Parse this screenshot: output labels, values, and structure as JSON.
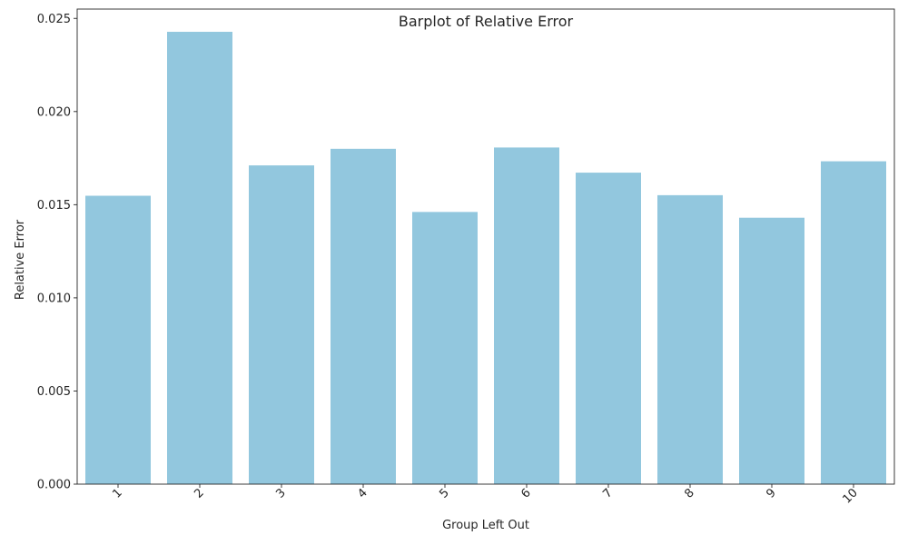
{
  "chart_data": {
    "type": "bar",
    "title": "Barplot of Relative Error",
    "xlabel": "Group Left Out",
    "ylabel": "Relative Error",
    "categories": [
      "1",
      "2",
      "3",
      "4",
      "5",
      "6",
      "7",
      "8",
      "9",
      "10"
    ],
    "values": [
      0.01548,
      0.02428,
      0.01711,
      0.018,
      0.01461,
      0.01807,
      0.01672,
      0.01551,
      0.0143,
      0.01733
    ],
    "ylim": [
      0,
      0.0255
    ],
    "yticks": [
      "0.000",
      "0.005",
      "0.010",
      "0.015",
      "0.020",
      "0.025"
    ],
    "grid": false,
    "legend": "none",
    "bar_color": "#92c7de",
    "x_tick_rotation": "45"
  }
}
